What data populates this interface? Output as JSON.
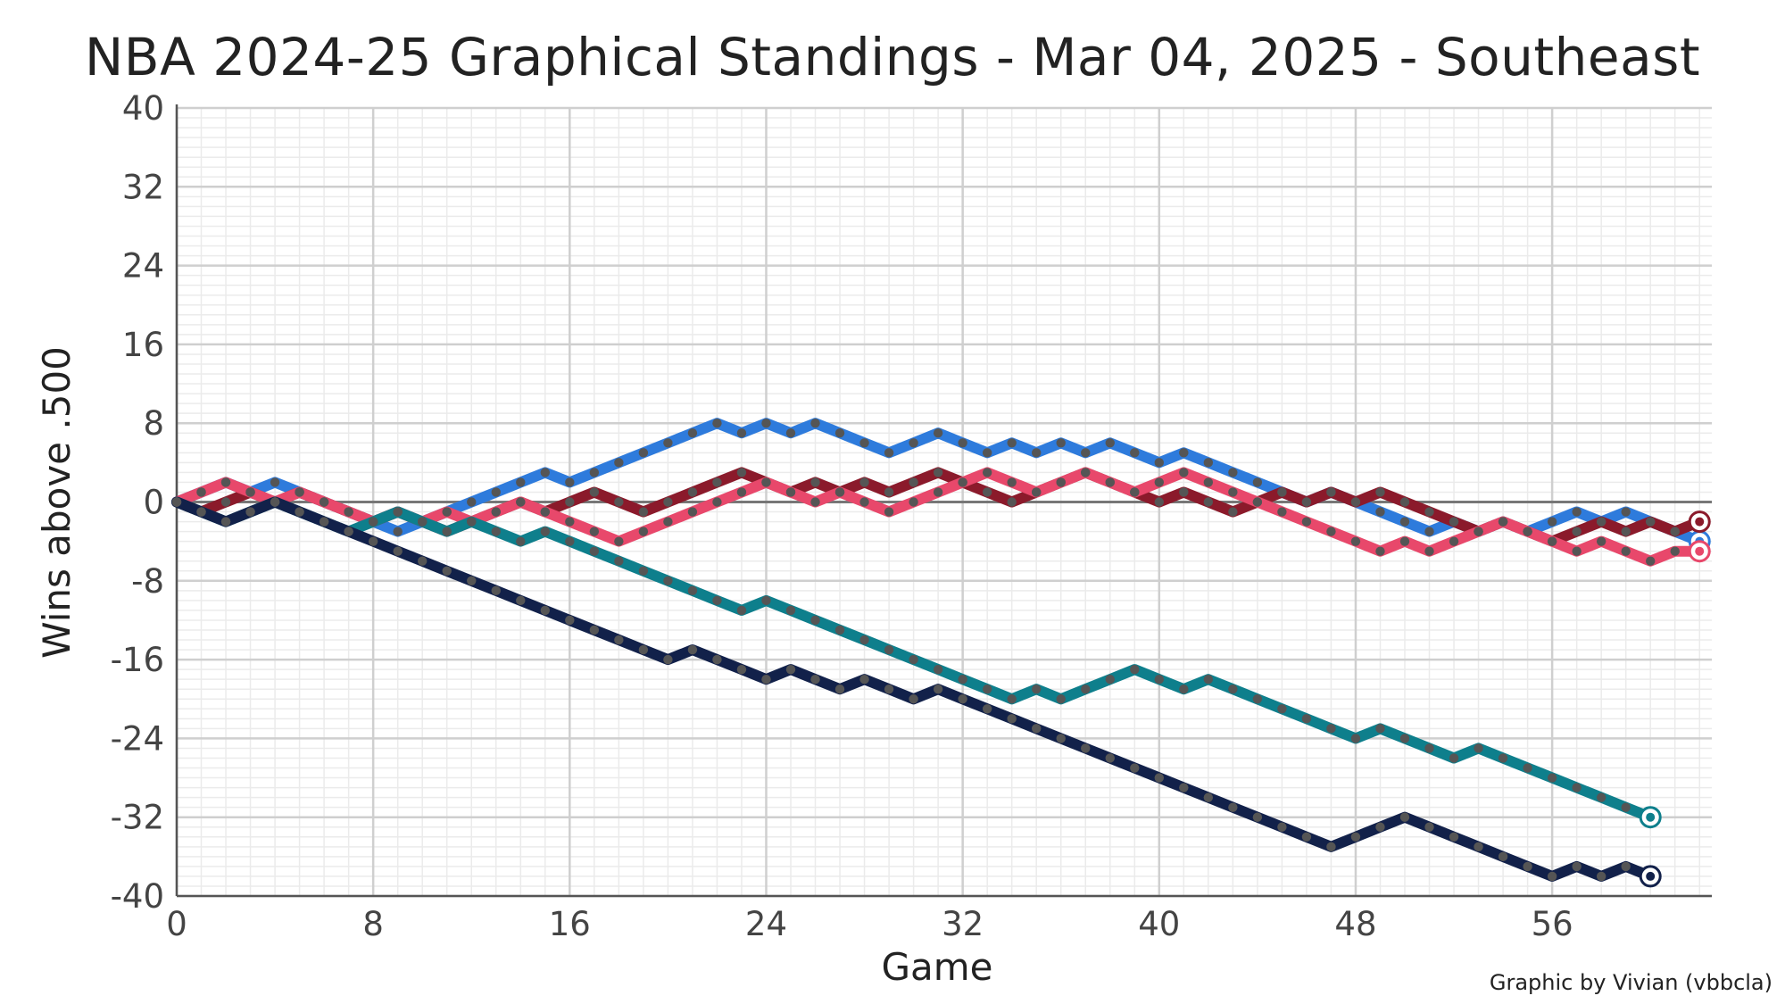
{
  "chart_data": {
    "type": "line",
    "title": "NBA 2024-25 Graphical Standings - Mar 04, 2025 - Southeast",
    "xlabel": "Game",
    "ylabel": "Wins above .500",
    "xlim": [
      0,
      62.5
    ],
    "ylim": [
      -40,
      40
    ],
    "x_ticks": [
      0,
      8,
      16,
      24,
      32,
      40,
      48,
      56
    ],
    "y_ticks": [
      40,
      32,
      24,
      16,
      8,
      0,
      -8,
      -16,
      -24,
      -32,
      -40
    ],
    "grid": true,
    "credit": "Graphic by Vivian (vbbcla)",
    "series": [
      {
        "team_logo": "orlando-magic-logo",
        "line_color": "#2e7bdc",
        "values": [
          0,
          1,
          2,
          1,
          2,
          1,
          0,
          -1,
          -2,
          -3,
          -2,
          -1,
          0,
          1,
          2,
          3,
          2,
          3,
          4,
          5,
          6,
          7,
          8,
          7,
          8,
          7,
          8,
          7,
          6,
          5,
          6,
          7,
          6,
          5,
          6,
          5,
          6,
          5,
          6,
          5,
          4,
          5,
          4,
          3,
          2,
          1,
          0,
          1,
          0,
          -1,
          -2,
          -3,
          -2,
          -3,
          -2,
          -3,
          -2,
          -1,
          -2,
          -1,
          -2,
          -3,
          -4
        ]
      },
      {
        "team_logo": "miami-heat-logo",
        "line_color": "#8b1a2b",
        "values": [
          0,
          -1,
          0,
          1,
          0,
          1,
          0,
          -1,
          -2,
          -1,
          -2,
          -3,
          -2,
          -1,
          0,
          -1,
          0,
          1,
          0,
          -1,
          0,
          1,
          2,
          3,
          2,
          1,
          2,
          1,
          2,
          1,
          2,
          3,
          2,
          1,
          0,
          1,
          2,
          3,
          2,
          1,
          0,
          1,
          0,
          -1,
          0,
          1,
          0,
          1,
          0,
          1,
          0,
          -1,
          -2,
          -3,
          -2,
          -3,
          -4,
          -3,
          -2,
          -3,
          -2,
          -3,
          -2
        ]
      },
      {
        "team_logo": "atlanta-hawks-logo",
        "line_color": "#e8486b",
        "values": [
          0,
          1,
          2,
          1,
          0,
          1,
          0,
          -1,
          -2,
          -1,
          -2,
          -1,
          -2,
          -1,
          0,
          -1,
          -2,
          -3,
          -4,
          -3,
          -2,
          -1,
          0,
          1,
          2,
          1,
          0,
          1,
          0,
          -1,
          0,
          1,
          2,
          3,
          2,
          1,
          2,
          3,
          2,
          1,
          2,
          3,
          2,
          1,
          0,
          -1,
          -2,
          -3,
          -4,
          -5,
          -4,
          -5,
          -4,
          -3,
          -2,
          -3,
          -4,
          -5,
          -4,
          -5,
          -6,
          -5,
          -5
        ]
      },
      {
        "team_logo": "charlotte-hornets-logo",
        "line_color": "#0e7f8c",
        "values": [
          0,
          -1,
          -2,
          -1,
          0,
          -1,
          -2,
          -3,
          -2,
          -1,
          -2,
          -3,
          -2,
          -3,
          -4,
          -3,
          -4,
          -5,
          -6,
          -7,
          -8,
          -9,
          -10,
          -11,
          -10,
          -11,
          -12,
          -13,
          -14,
          -15,
          -16,
          -17,
          -18,
          -19,
          -20,
          -19,
          -20,
          -19,
          -18,
          -17,
          -18,
          -19,
          -18,
          -19,
          -20,
          -21,
          -22,
          -23,
          -24,
          -23,
          -24,
          -25,
          -26,
          -25,
          -26,
          -27,
          -28,
          -29,
          -30,
          -31,
          -32
        ]
      },
      {
        "team_logo": "washington-wizards-logo",
        "line_color": "#12214a",
        "values": [
          0,
          -1,
          -2,
          -1,
          0,
          -1,
          -2,
          -3,
          -4,
          -5,
          -6,
          -7,
          -8,
          -9,
          -10,
          -11,
          -12,
          -13,
          -14,
          -15,
          -16,
          -15,
          -16,
          -17,
          -18,
          -17,
          -18,
          -19,
          -18,
          -19,
          -20,
          -19,
          -20,
          -21,
          -22,
          -23,
          -24,
          -25,
          -26,
          -27,
          -28,
          -29,
          -30,
          -31,
          -32,
          -33,
          -34,
          -35,
          -34,
          -33,
          -32,
          -33,
          -34,
          -35,
          -36,
          -37,
          -38,
          -37,
          -38,
          -37,
          -38
        ]
      }
    ]
  }
}
